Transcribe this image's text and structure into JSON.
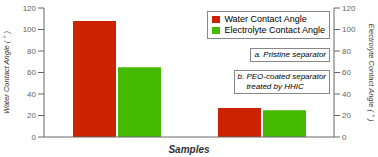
{
  "chart_data": {
    "type": "bar",
    "x_label": "Samples",
    "y_label": "Water Contact Angle ( ° )",
    "y2_label": "Electrolyte Contact Angle ( ° )",
    "categories": [
      null,
      null
    ],
    "series": [
      {
        "name": "Water Contact Angle",
        "color": "#cc2200",
        "values": [
          108,
          27
        ]
      },
      {
        "name": "Electrolyte Contact Angle",
        "color": "#44bb00",
        "values": [
          65,
          25
        ],
        "axis": "y2"
      }
    ],
    "ylim": [
      0,
      120
    ],
    "yticks": [
      0,
      20,
      40,
      60,
      80,
      100,
      120
    ],
    "y2lim": [
      0,
      120
    ],
    "y2ticks": [
      0,
      20,
      40,
      60,
      80,
      100,
      120
    ],
    "legend": "upper right",
    "grid": false,
    "annotations": [
      "a. Pristine separator",
      "b. PEO-coated separator\n    treated by HHIC"
    ]
  }
}
